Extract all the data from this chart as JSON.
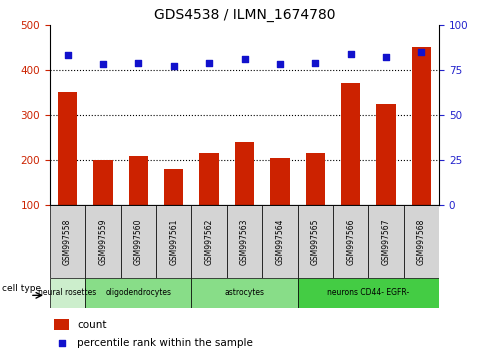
{
  "title": "GDS4538 / ILMN_1674780",
  "samples": [
    "GSM997558",
    "GSM997559",
    "GSM997560",
    "GSM997561",
    "GSM997562",
    "GSM997563",
    "GSM997564",
    "GSM997565",
    "GSM997566",
    "GSM997567",
    "GSM997568"
  ],
  "counts": [
    350,
    200,
    210,
    180,
    215,
    240,
    205,
    215,
    370,
    325,
    450
  ],
  "percentiles": [
    83,
    78,
    79,
    77,
    79,
    81,
    78,
    79,
    84,
    82,
    85
  ],
  "ylim_left": [
    100,
    500
  ],
  "ylim_right": [
    0,
    100
  ],
  "yticks_left": [
    100,
    200,
    300,
    400,
    500
  ],
  "yticks_right": [
    0,
    25,
    50,
    75,
    100
  ],
  "bar_color": "#cc2200",
  "dot_color": "#1111cc",
  "grid_color": "#000000",
  "axis_color_left": "#cc2200",
  "axis_color_right": "#2222cc",
  "cell_groups": [
    {
      "label": "neural rosettes",
      "start": 0,
      "end": 1,
      "color": "#cceecc"
    },
    {
      "label": "oligodendrocytes",
      "start": 1,
      "end": 4,
      "color": "#88dd88"
    },
    {
      "label": "astrocytes",
      "start": 4,
      "end": 7,
      "color": "#88dd88"
    },
    {
      "label": "neurons CD44- EGFR-",
      "start": 7,
      "end": 11,
      "color": "#44cc44"
    }
  ],
  "legend_count_label": "count",
  "legend_pct_label": "percentile rank within the sample",
  "cell_type_label": "cell type"
}
